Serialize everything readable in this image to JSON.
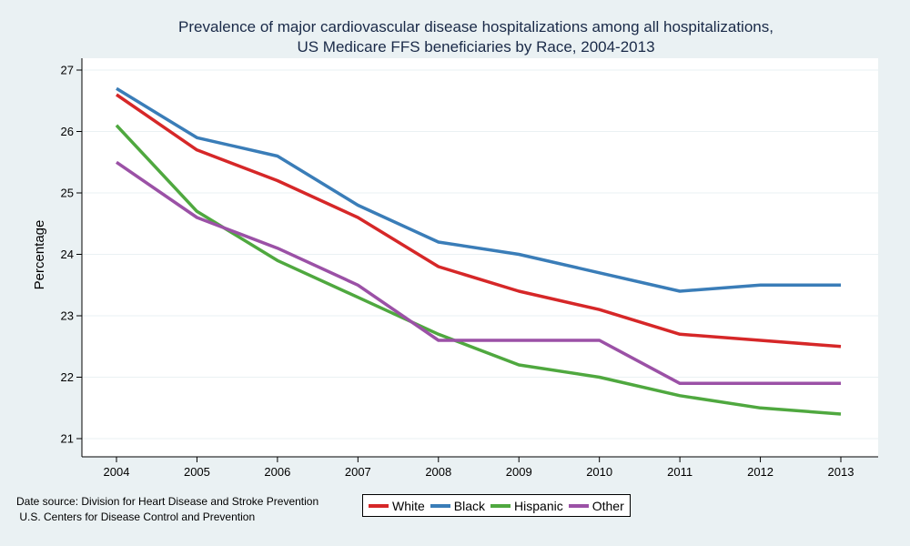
{
  "chart_data": {
    "type": "line",
    "title": [
      "Prevalence of major cardiovascular disease hospitalizations among all hospitalizations,",
      "US Medicare FFS beneficiaries by Race, 2004-2013"
    ],
    "xlabel": "",
    "ylabel": "Percentage",
    "x": [
      2004,
      2005,
      2006,
      2007,
      2008,
      2009,
      2010,
      2011,
      2012,
      2013
    ],
    "ylim": [
      21,
      27
    ],
    "yticks": [
      21,
      22,
      23,
      24,
      25,
      26,
      27
    ],
    "grid": true,
    "legend_position": "bottom",
    "series": [
      {
        "name": "White",
        "color": "#d62728",
        "values": [
          26.6,
          25.7,
          25.2,
          24.6,
          23.8,
          23.4,
          23.1,
          22.7,
          22.6,
          22.5
        ]
      },
      {
        "name": "Black",
        "color": "#3a7db8",
        "values": [
          26.7,
          25.9,
          25.6,
          24.8,
          24.2,
          24.0,
          23.7,
          23.4,
          23.5,
          23.5
        ]
      },
      {
        "name": "Hispanic",
        "color": "#4fa83f",
        "values": [
          26.1,
          24.7,
          23.9,
          23.3,
          22.7,
          22.2,
          22.0,
          21.7,
          21.5,
          21.4
        ]
      },
      {
        "name": "Other",
        "color": "#9b51a6",
        "values": [
          25.5,
          24.6,
          24.1,
          23.5,
          22.6,
          22.6,
          22.6,
          21.9,
          21.9,
          21.9
        ]
      }
    ]
  },
  "source_note": [
    "Date source: Division for Heart Disease and Stroke Prevention",
    " U.S. Centers for Disease Control and Prevention"
  ]
}
